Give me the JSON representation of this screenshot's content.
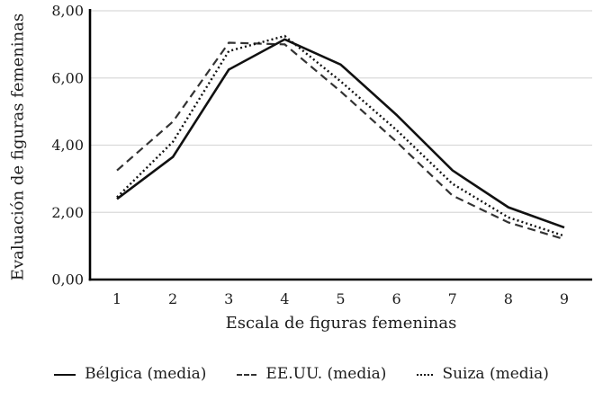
{
  "chart_data": {
    "type": "line",
    "title": "",
    "xlabel": "Escala de figuras femeninas",
    "ylabel": "Evaluación de figuras femeninas",
    "categories": [
      "1",
      "2",
      "3",
      "4",
      "5",
      "6",
      "7",
      "8",
      "9"
    ],
    "ylim": [
      0,
      8
    ],
    "y_ticks": [
      {
        "label": "0,00",
        "value": 0
      },
      {
        "label": "2,00",
        "value": 2
      },
      {
        "label": "4,00",
        "value": 4
      },
      {
        "label": "6,00",
        "value": 6
      },
      {
        "label": "8,00",
        "value": 8
      }
    ],
    "grid": true,
    "legend_position": "bottom",
    "series": [
      {
        "name": "Bélgica (media)",
        "style": "solid",
        "color": "#111111",
        "values": [
          2.4,
          3.65,
          6.25,
          7.15,
          6.4,
          4.9,
          3.25,
          2.15,
          1.55
        ]
      },
      {
        "name": "EE.UU. (media)",
        "style": "dashed",
        "color": "#333333",
        "values": [
          3.25,
          4.7,
          7.05,
          7.0,
          5.6,
          4.1,
          2.5,
          1.7,
          1.2
        ]
      },
      {
        "name": "Suiza (media)",
        "style": "dotted",
        "color": "#111111",
        "values": [
          2.45,
          4.1,
          6.8,
          7.25,
          5.9,
          4.45,
          2.85,
          1.85,
          1.3
        ]
      }
    ]
  },
  "colors": {
    "grid": "#d9d9d9",
    "axis": "#000000",
    "text": "#1c1c1c"
  }
}
